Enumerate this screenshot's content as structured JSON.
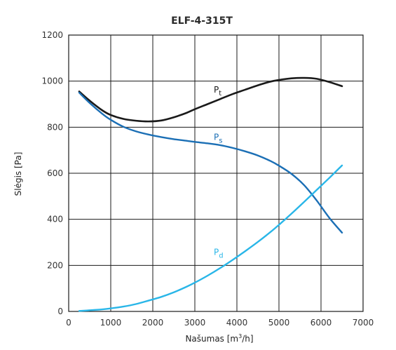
{
  "chart_data": {
    "type": "line",
    "title": "ELF-4-315T",
    "xlabel": {
      "main": "Našumas",
      "unit_open": " [m",
      "unit_sup": "3",
      "unit_close": "/h]"
    },
    "ylabel": "Slėgis [Pa]",
    "xlim": [
      0,
      7000
    ],
    "ylim": [
      0,
      1200
    ],
    "xticks": [
      0,
      1000,
      2000,
      3000,
      4000,
      5000,
      6000,
      7000
    ],
    "yticks": [
      0,
      200,
      400,
      600,
      800,
      1000,
      1200
    ],
    "xtick_labels": [
      "0",
      "1000",
      "2000",
      "3000",
      "4000",
      "5000",
      "6000",
      "7000"
    ],
    "ytick_labels": [
      "0",
      "200",
      "400",
      "600",
      "800",
      "1000",
      "1200"
    ],
    "grid": true,
    "legend": "none",
    "series": [
      {
        "main": "P",
        "sub": "t",
        "color": "#1a1a1a",
        "label_at": [
          3450,
          950
        ],
        "x": [
          250,
          500,
          800,
          1000,
          1300,
          1600,
          1900,
          2200,
          2500,
          2800,
          3000,
          3300,
          3600,
          3900,
          4200,
          4500,
          4800,
          5000,
          5300,
          5600,
          5900,
          6200,
          6500
        ],
        "y": [
          955,
          915,
          873,
          853,
          836,
          828,
          825,
          829,
          843,
          862,
          878,
          900,
          922,
          944,
          963,
          982,
          998,
          1005,
          1012,
          1014,
          1010,
          996,
          978
        ]
      },
      {
        "main": "P",
        "sub": "s",
        "color": "#1b6fb5",
        "label_at": [
          3450,
          745
        ],
        "x": [
          250,
          500,
          800,
          1000,
          1300,
          1600,
          1900,
          2200,
          2500,
          2800,
          3000,
          3300,
          3600,
          3900,
          4200,
          4500,
          4800,
          5000,
          5300,
          5600,
          5900,
          6200,
          6500
        ],
        "y": [
          950,
          905,
          858,
          832,
          802,
          782,
          768,
          757,
          748,
          741,
          736,
          730,
          722,
          710,
          695,
          677,
          653,
          633,
          597,
          548,
          481,
          406,
          342
        ]
      },
      {
        "main": "P",
        "sub": "d",
        "color": "#29b6e8",
        "label_at": [
          3450,
          245
        ],
        "x": [
          250,
          500,
          800,
          1000,
          1300,
          1600,
          1900,
          2200,
          2500,
          2800,
          3000,
          3300,
          3600,
          3900,
          4200,
          4500,
          4800,
          5000,
          5300,
          5600,
          5900,
          6200,
          6500
        ],
        "y": [
          2,
          5,
          9,
          13,
          21,
          32,
          47,
          63,
          83,
          107,
          125,
          155,
          188,
          224,
          262,
          302,
          345,
          376,
          425,
          476,
          528,
          580,
          634
        ]
      }
    ]
  }
}
